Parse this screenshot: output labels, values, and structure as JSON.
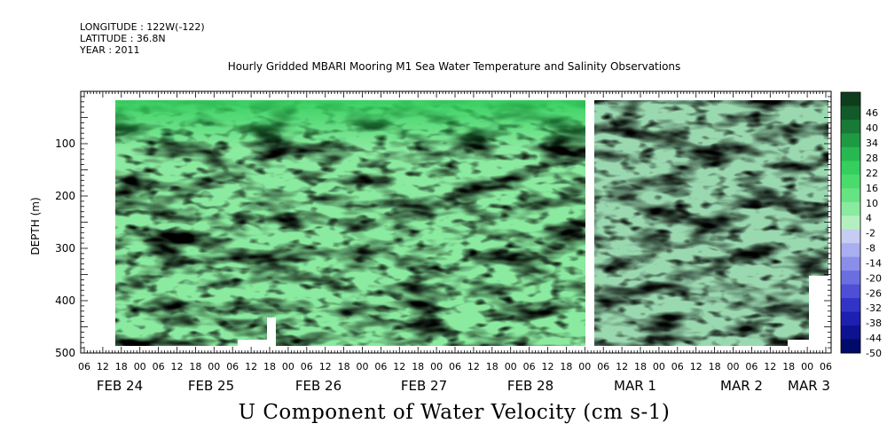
{
  "header": {
    "longitude": "LONGITUDE : 122W(-122)",
    "latitude": "LATITUDE : 36.8N",
    "year": "YEAR : 2011"
  },
  "chart_data": {
    "type": "heatmap",
    "title": "Hourly Gridded MBARI Mooring M1 Sea Water Temperature and Salinity Observations",
    "variable_title": "U Component of Water Velocity (cm s-1)",
    "ylabel": "DEPTH (m)",
    "xlabel": "",
    "y_axis": {
      "range": [
        500,
        0
      ],
      "ticks": [
        100,
        200,
        300,
        400,
        500
      ],
      "reversed": true
    },
    "x_axis": {
      "range_hours_labels": [
        "FEB 24 06",
        "MAR 3 06"
      ],
      "hour_tick_labels": [
        "06",
        "12",
        "18",
        "00",
        "06",
        "12",
        "18",
        "00",
        "06",
        "12",
        "18",
        "00",
        "06",
        "12",
        "18",
        "00",
        "06",
        "12",
        "18",
        "00",
        "06",
        "12",
        "18",
        "00",
        "06",
        "12",
        "18",
        "00",
        "06",
        "12",
        "18",
        "00",
        "06",
        "12",
        "18",
        "00",
        "06",
        "12",
        "18",
        "00",
        "06"
      ],
      "day_labels": [
        "FEB 24",
        "FEB 25",
        "FEB 26",
        "FEB 27",
        "FEB 28",
        "MAR  1",
        "MAR  2",
        "MAR  3"
      ]
    },
    "colorbar": {
      "labels": [
        "46",
        "40",
        "34",
        "28",
        "22",
        "16",
        "10",
        "4",
        "-2",
        "-8",
        "-14",
        "-20",
        "-26",
        "-32",
        "-38",
        "-44",
        "-50"
      ],
      "colors": [
        "#0d3d1c",
        "#125a29",
        "#187a36",
        "#1f9a44",
        "#28b851",
        "#34cf5e",
        "#49dc6c",
        "#66e382",
        "#8aea9f",
        "#b4efc0",
        "#c6ccf2",
        "#a8aef0",
        "#8a8ee8",
        "#6b6ee0",
        "#4e4fd6",
        "#3234c8",
        "#1d1fb0",
        "#0e1190",
        "#000a6a"
      ]
    }
  }
}
